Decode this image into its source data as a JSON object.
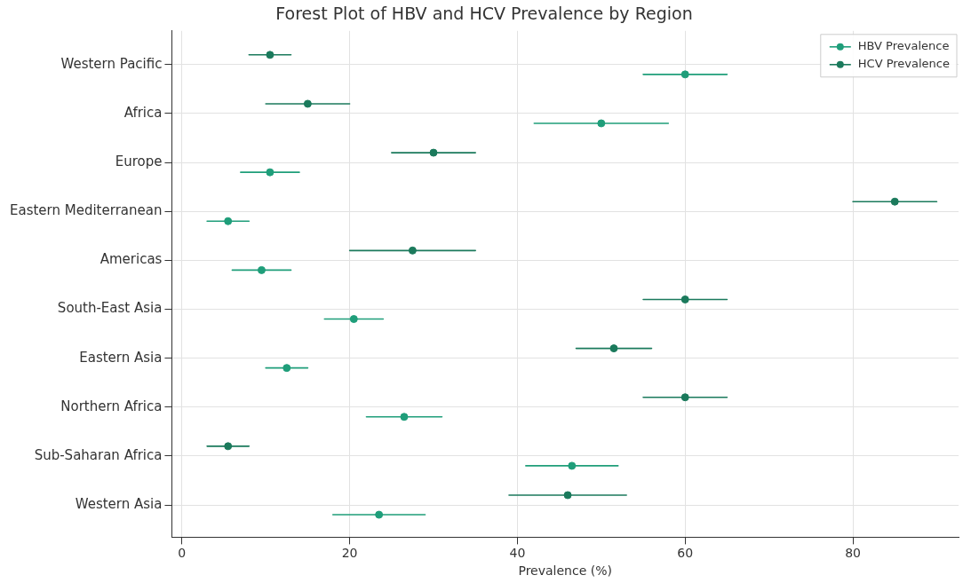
{
  "chart_data": {
    "type": "scatter",
    "orientation": "horizontal",
    "title": "Forest Plot of HBV and HCV Prevalence by Region",
    "xlabel": "Prevalence (%)",
    "categories": [
      "Western Pacific",
      "Africa",
      "Europe",
      "Eastern Mediterranean",
      "Americas",
      "South-East Asia",
      "Eastern Asia",
      "Northern Africa",
      "Sub-Saharan Africa",
      "Western Asia"
    ],
    "series": [
      {
        "name": "HBV Prevalence",
        "color": "#1f9e7a",
        "values": [
          60,
          50,
          10.5,
          5.5,
          9.5,
          20.5,
          12.5,
          26.5,
          46.5,
          23.5
        ],
        "errors": [
          [
            55,
            65
          ],
          [
            42,
            58
          ],
          [
            7,
            14
          ],
          [
            3,
            8
          ],
          [
            6,
            13
          ],
          [
            17,
            24
          ],
          [
            10,
            15
          ],
          [
            22,
            31
          ],
          [
            41,
            52
          ],
          [
            18,
            29
          ]
        ]
      },
      {
        "name": "HCV Prevalence",
        "color": "#1b7a5c",
        "values": [
          10.5,
          15,
          30,
          85,
          27.5,
          60,
          51.5,
          60,
          5.5,
          46
        ],
        "errors": [
          [
            8,
            13
          ],
          [
            10,
            20
          ],
          [
            25,
            35
          ],
          [
            80,
            90
          ],
          [
            20,
            35
          ],
          [
            55,
            65
          ],
          [
            47,
            56
          ],
          [
            55,
            65
          ],
          [
            3,
            8
          ],
          [
            39,
            53
          ]
        ]
      }
    ],
    "xlim": [
      -1.2,
      92.6
    ],
    "xticks": [
      0,
      20,
      40,
      60,
      80
    ],
    "grid": true,
    "legend": "top right",
    "marker": "circle"
  }
}
